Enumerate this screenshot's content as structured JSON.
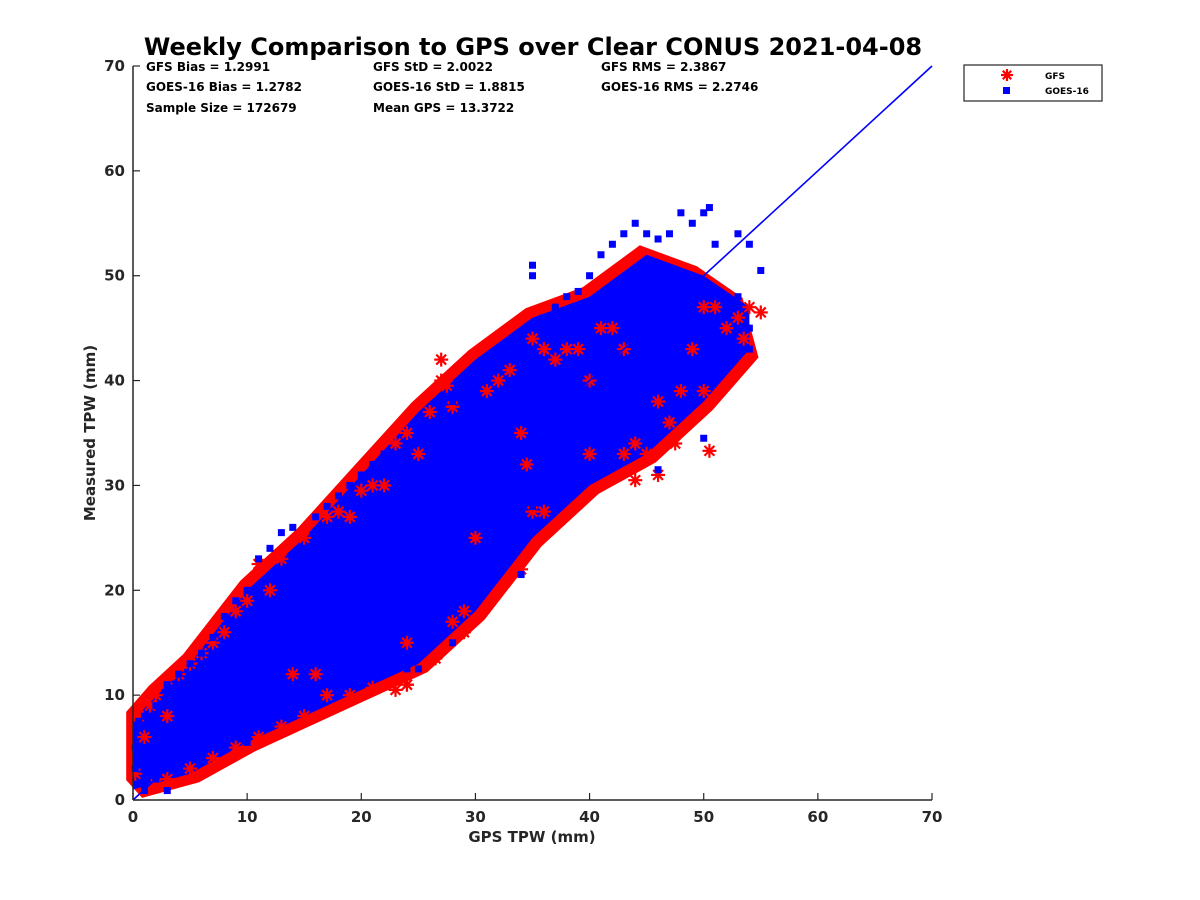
{
  "chart_data": {
    "type": "scatter",
    "title": "Weekly Comparison to GPS over Clear CONUS 2021-04-08",
    "xlabel": "GPS TPW (mm)",
    "ylabel": "Measured TPW (mm)",
    "xlim": [
      0,
      70
    ],
    "ylim": [
      0,
      70
    ],
    "xticks": [
      "0",
      "10",
      "20",
      "30",
      "40",
      "50",
      "60",
      "70"
    ],
    "yticks": [
      "0",
      "10",
      "20",
      "30",
      "40",
      "50",
      "60",
      "70"
    ],
    "grid": false,
    "legend_position": "outside-top-right",
    "reference_line": {
      "x": [
        0,
        70
      ],
      "y": [
        0,
        70
      ],
      "color": "#0000ff"
    },
    "stats": [
      [
        "GFS Bias = 1.2991",
        "GFS StD = 2.0022",
        "GFS RMS = 2.3867"
      ],
      [
        "GOES-16 Bias = 1.2782",
        "GOES-16 StD = 1.8815",
        "GOES-16 RMS = 2.2746"
      ],
      [
        "Sample Size = 172679",
        "Mean GPS = 13.3722"
      ]
    ],
    "series": [
      {
        "name": "GFS",
        "marker": "asterisk",
        "color": "#ff0000",
        "points": [
          [
            0.2,
            2.5
          ],
          [
            0.5,
            8
          ],
          [
            1,
            6
          ],
          [
            1.5,
            9
          ],
          [
            2,
            10
          ],
          [
            3,
            11.5
          ],
          [
            3,
            8
          ],
          [
            4,
            12
          ],
          [
            5,
            13
          ],
          [
            6,
            14
          ],
          [
            7,
            15
          ],
          [
            8,
            16
          ],
          [
            9,
            18
          ],
          [
            10,
            19
          ],
          [
            11,
            22.5
          ],
          [
            11,
            5.5
          ],
          [
            12,
            20
          ],
          [
            13,
            23
          ],
          [
            14,
            12
          ],
          [
            15,
            25
          ],
          [
            16,
            12
          ],
          [
            17,
            27
          ],
          [
            18,
            27.5
          ],
          [
            19,
            27
          ],
          [
            20,
            29.5
          ],
          [
            21,
            30
          ],
          [
            22,
            30
          ],
          [
            23,
            34
          ],
          [
            24,
            35
          ],
          [
            24,
            11
          ],
          [
            24,
            15
          ],
          [
            25,
            33
          ],
          [
            26,
            37
          ],
          [
            26.5,
            13.5
          ],
          [
            27,
            42
          ],
          [
            27,
            40
          ],
          [
            27.5,
            39.5
          ],
          [
            28,
            37.5
          ],
          [
            28,
            17
          ],
          [
            29,
            18
          ],
          [
            29,
            16
          ],
          [
            30,
            25
          ],
          [
            31,
            39
          ],
          [
            32,
            40
          ],
          [
            33,
            41
          ],
          [
            34,
            35
          ],
          [
            34,
            22
          ],
          [
            34.5,
            32
          ],
          [
            35,
            44
          ],
          [
            35,
            27.5
          ],
          [
            36,
            43
          ],
          [
            36,
            27.5
          ],
          [
            37,
            42
          ],
          [
            38,
            43
          ],
          [
            39,
            43
          ],
          [
            40,
            40
          ],
          [
            40,
            33
          ],
          [
            41,
            45
          ],
          [
            42,
            45
          ],
          [
            43,
            43
          ],
          [
            43,
            33
          ],
          [
            44,
            30.5
          ],
          [
            44,
            34
          ],
          [
            45,
            33
          ],
          [
            46,
            31
          ],
          [
            46,
            38
          ],
          [
            47,
            36
          ],
          [
            47.5,
            34
          ],
          [
            48,
            39
          ],
          [
            49,
            43
          ],
          [
            50,
            39
          ],
          [
            50,
            47
          ],
          [
            51,
            47
          ],
          [
            52,
            45
          ],
          [
            53,
            46
          ],
          [
            53.5,
            44
          ],
          [
            54,
            47
          ],
          [
            55,
            46.5
          ],
          [
            50.5,
            33.3
          ],
          [
            24,
            11
          ],
          [
            23,
            10.5
          ],
          [
            21,
            10.7
          ],
          [
            19,
            10
          ],
          [
            17,
            10
          ],
          [
            15,
            8
          ],
          [
            13,
            7
          ],
          [
            11,
            6
          ],
          [
            9,
            5
          ],
          [
            7,
            4
          ],
          [
            5,
            3
          ],
          [
            3,
            2
          ],
          [
            2,
            1.5
          ]
        ]
      },
      {
        "name": "GOES-16",
        "marker": "square",
        "color": "#0000ff",
        "points": [
          [
            0.5,
            7.5
          ],
          [
            1,
            8
          ],
          [
            2,
            9
          ],
          [
            3,
            11
          ],
          [
            4,
            12
          ],
          [
            5,
            13
          ],
          [
            6,
            14
          ],
          [
            7,
            15.5
          ],
          [
            8,
            17.5
          ],
          [
            9,
            19
          ],
          [
            10,
            20
          ],
          [
            11,
            23
          ],
          [
            12,
            24
          ],
          [
            13,
            25.5
          ],
          [
            14,
            26
          ],
          [
            15,
            24
          ],
          [
            16,
            27
          ],
          [
            17,
            28
          ],
          [
            18,
            29
          ],
          [
            19,
            30
          ],
          [
            20,
            31
          ],
          [
            21,
            32
          ],
          [
            22,
            33
          ],
          [
            23,
            33
          ],
          [
            24,
            34
          ],
          [
            25,
            35
          ],
          [
            26,
            36
          ],
          [
            27,
            37
          ],
          [
            28,
            38
          ],
          [
            29,
            39
          ],
          [
            30,
            40
          ],
          [
            31,
            41
          ],
          [
            32,
            42
          ],
          [
            33,
            43
          ],
          [
            34,
            44
          ],
          [
            35,
            50
          ],
          [
            35,
            51
          ],
          [
            36,
            46
          ],
          [
            37,
            47
          ],
          [
            38,
            48
          ],
          [
            39,
            48.5
          ],
          [
            40,
            50
          ],
          [
            41,
            52
          ],
          [
            42,
            53
          ],
          [
            43,
            54
          ],
          [
            44,
            55
          ],
          [
            45,
            54
          ],
          [
            46,
            53.5
          ],
          [
            47,
            54
          ],
          [
            48,
            56
          ],
          [
            49,
            55
          ],
          [
            50,
            56
          ],
          [
            50.5,
            56.5
          ],
          [
            51,
            53
          ],
          [
            53,
            54
          ],
          [
            54,
            53
          ],
          [
            55,
            50.5
          ],
          [
            52,
            48
          ],
          [
            53,
            48
          ],
          [
            54,
            45
          ],
          [
            54,
            43
          ],
          [
            50,
            34.5
          ],
          [
            46,
            31.5
          ],
          [
            44,
            33
          ],
          [
            40,
            38
          ],
          [
            35,
            28
          ],
          [
            34,
            21.5
          ],
          [
            32,
            26
          ],
          [
            30,
            24
          ],
          [
            29,
            21
          ],
          [
            28,
            15
          ],
          [
            27,
            17
          ],
          [
            26,
            15
          ],
          [
            25,
            12.5
          ],
          [
            24,
            12.5
          ],
          [
            22,
            13
          ],
          [
            20,
            12
          ],
          [
            18,
            10
          ],
          [
            16,
            9
          ],
          [
            14,
            8
          ],
          [
            12,
            7
          ],
          [
            10,
            5.5
          ],
          [
            8,
            5
          ],
          [
            6,
            4
          ],
          [
            4,
            3
          ],
          [
            2,
            2
          ],
          [
            1,
            1.5
          ],
          [
            0.2,
            3
          ],
          [
            0.2,
            5
          ],
          [
            3,
            0.9
          ],
          [
            1,
            0.9
          ]
        ]
      }
    ]
  }
}
